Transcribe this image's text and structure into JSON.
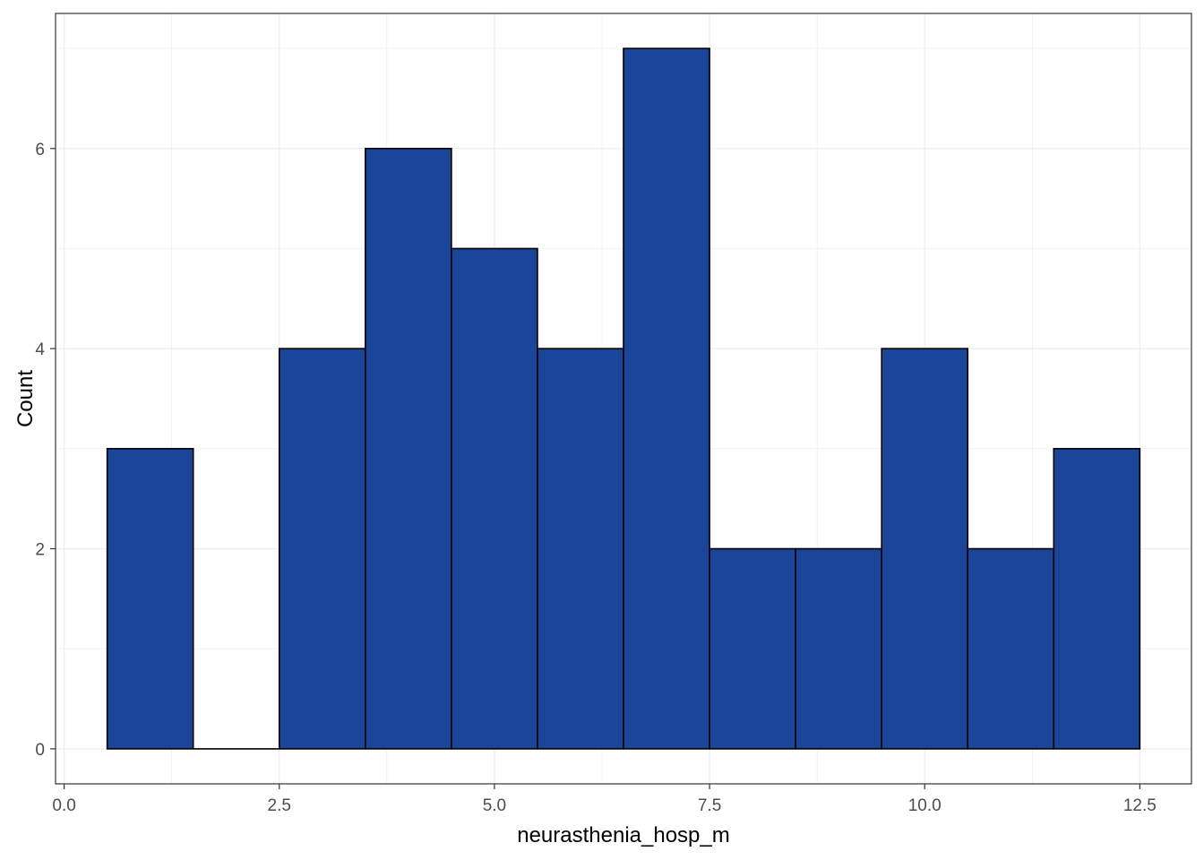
{
  "chart_data": {
    "type": "bar",
    "subtype": "histogram",
    "title": "",
    "xlabel": "neurasthenia_hosp_m",
    "ylabel": "Count",
    "bin_width": 1,
    "bins": [
      {
        "x": 1,
        "count": 3
      },
      {
        "x": 2,
        "count": 0
      },
      {
        "x": 3,
        "count": 4
      },
      {
        "x": 4,
        "count": 6
      },
      {
        "x": 5,
        "count": 5
      },
      {
        "x": 6,
        "count": 4
      },
      {
        "x": 7,
        "count": 7
      },
      {
        "x": 8,
        "count": 2
      },
      {
        "x": 9,
        "count": 2
      },
      {
        "x": 10,
        "count": 4
      },
      {
        "x": 11,
        "count": 2
      },
      {
        "x": 12,
        "count": 3
      }
    ],
    "xlim": [
      -0.1,
      13.1
    ],
    "ylim": [
      -0.35,
      7.35
    ],
    "x_ticks": [
      {
        "value": 0,
        "label": "0.0"
      },
      {
        "value": 2.5,
        "label": "2.5"
      },
      {
        "value": 5,
        "label": "5.0"
      },
      {
        "value": 7.5,
        "label": "7.5"
      },
      {
        "value": 10,
        "label": "10.0"
      },
      {
        "value": 12.5,
        "label": "12.5"
      }
    ],
    "y_ticks": [
      {
        "value": 0,
        "label": "0"
      },
      {
        "value": 2,
        "label": "2"
      },
      {
        "value": 4,
        "label": "4"
      },
      {
        "value": 6,
        "label": "6"
      }
    ],
    "grid": true,
    "legend": "none",
    "colors": {
      "bar_fill": "#1a4599",
      "bar_stroke": "#000000",
      "grid": "#ebebeb",
      "panel_border": "#333333"
    }
  }
}
